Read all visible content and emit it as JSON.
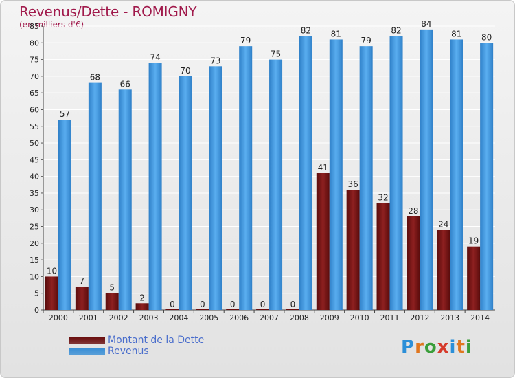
{
  "colors": {
    "title": "#a0194b",
    "dette": "#8b1a1a",
    "revenus": "#3a8fd6",
    "legend_text": "#4a6ecc"
  },
  "header": {
    "title": "Revenus/Dette - ROMIGNY",
    "subtitle": "(en milliers d'€)"
  },
  "legend": {
    "items": [
      {
        "label": "Montant de la Dette",
        "color": "#6b0f0f"
      },
      {
        "label": "Revenus",
        "color": "#3a8fd6"
      }
    ]
  },
  "logo": {
    "text": "Proxiti",
    "letters": [
      {
        "char": "P",
        "color": "#2b8fd8"
      },
      {
        "char": "r",
        "color": "#e0761e"
      },
      {
        "char": "o",
        "color": "#3a9e3a"
      },
      {
        "char": "x",
        "color": "#d63a2a"
      },
      {
        "char": "i",
        "color": "#2b8fd8"
      },
      {
        "char": "t",
        "color": "#e0761e"
      },
      {
        "char": "i",
        "color": "#3a9e3a"
      }
    ]
  },
  "chart_data": {
    "type": "bar",
    "title": "Revenus/Dette - ROMIGNY",
    "ylabel": "(en milliers d'€)",
    "xlabel": "",
    "ylim": [
      0,
      85
    ],
    "y_ticks": [
      0,
      5,
      10,
      15,
      20,
      25,
      30,
      35,
      40,
      45,
      50,
      55,
      60,
      65,
      70,
      75,
      80,
      85
    ],
    "grid": true,
    "categories": [
      "2000",
      "2001",
      "2002",
      "2003",
      "2004",
      "2005",
      "2006",
      "2007",
      "2008",
      "2009",
      "2010",
      "2011",
      "2012",
      "2013",
      "2014"
    ],
    "series": [
      {
        "name": "Montant de la Dette",
        "values": [
          10,
          7,
          5,
          2,
          0,
          0,
          0,
          0,
          0,
          41,
          36,
          32,
          28,
          24,
          19
        ]
      },
      {
        "name": "Revenus",
        "values": [
          57,
          68,
          66,
          74,
          70,
          73,
          79,
          75,
          82,
          81,
          79,
          82,
          84,
          81,
          80
        ]
      }
    ]
  }
}
